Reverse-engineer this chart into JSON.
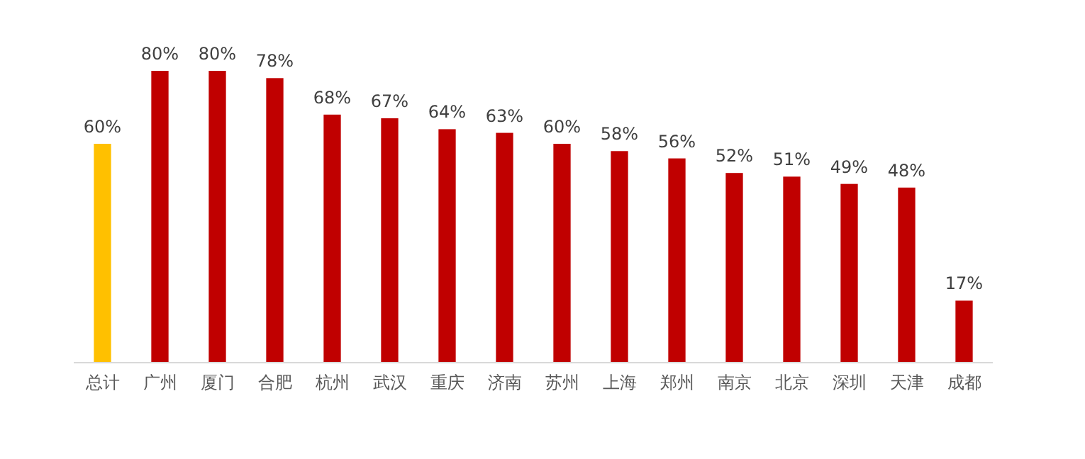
{
  "chart_data": {
    "type": "bar",
    "categories": [
      "总计",
      "广州",
      "厦门",
      "合肥",
      "杭州",
      "武汉",
      "重庆",
      "济南",
      "苏州",
      "上海",
      "郑州",
      "南京",
      "北京",
      "深圳",
      "天津",
      "成都"
    ],
    "values": [
      60,
      80,
      80,
      78,
      68,
      67,
      64,
      63,
      60,
      58,
      56,
      52,
      51,
      49,
      48,
      17
    ],
    "colors": [
      "#ffc000",
      "#c00000",
      "#c00000",
      "#c00000",
      "#c00000",
      "#c00000",
      "#c00000",
      "#c00000",
      "#c00000",
      "#c00000",
      "#c00000",
      "#c00000",
      "#c00000",
      "#c00000",
      "#c00000",
      "#c00000"
    ],
    "value_labels": [
      "60%",
      "80%",
      "80%",
      "78%",
      "68%",
      "67%",
      "64%",
      "63%",
      "60%",
      "58%",
      "56%",
      "52%",
      "51%",
      "49%",
      "48%",
      "17%"
    ]
  }
}
